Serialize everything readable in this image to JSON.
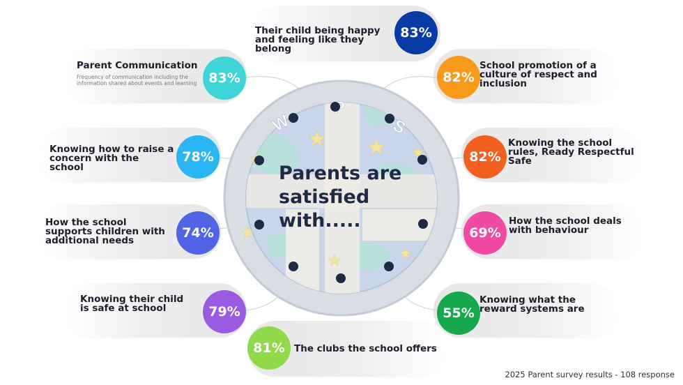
{
  "center": {
    "title": "Parents are satisfied with....."
  },
  "logo": {
    "letters": [
      "W",
      "P",
      "S"
    ]
  },
  "footer": "2025 Parent survey results - 108 response",
  "items": [
    {
      "label": "Their child being happy and feeling like they belong",
      "value": "83%",
      "color": "#0a3aa6"
    },
    {
      "label": "Parent Communication",
      "subtitle": "Frequency of communication including the information shared about events and learning",
      "value": "83%",
      "color": "#3ed4d8"
    },
    {
      "label": "School promotion of a culture of respect and inclusion",
      "value": "82%",
      "color": "#f79a1c"
    },
    {
      "label": "Knowing how to raise a concern with the school",
      "value": "78%",
      "color": "#29b6f2"
    },
    {
      "label": "Knowing the school rules, Ready Respectful Safe",
      "value": "82%",
      "color": "#f2601f"
    },
    {
      "label": "How the school supports children with additional needs",
      "value": "74%",
      "color": "#5264e6"
    },
    {
      "label": "How the school deals with behaviour",
      "value": "69%",
      "color": "#f04aa5"
    },
    {
      "label": "Knowing their child is safe at school",
      "value": "79%",
      "color": "#9a5be0"
    },
    {
      "label": "Knowing what the reward systems are",
      "value": "55%",
      "color": "#16a84c"
    },
    {
      "label": "The clubs the school offers",
      "value": "81%",
      "color": "#8fd94a"
    }
  ]
}
